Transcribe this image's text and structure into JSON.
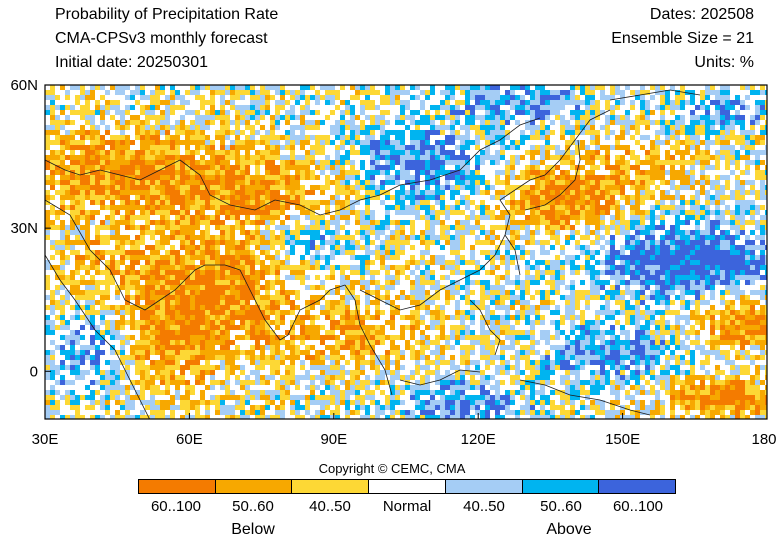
{
  "header": {
    "title": "Probability of Precipitation Rate",
    "model": "CMA-CPSv3 monthly forecast",
    "initial_date": "Initial date: 20250301",
    "dates": "Dates: 202508",
    "ensemble": "Ensemble Size = 21",
    "units": "Units: %"
  },
  "axes": {
    "lon_ticks": [
      "30E",
      "60E",
      "90E",
      "120E",
      "150E",
      "180"
    ],
    "lat_ticks": [
      "60N",
      "30N",
      "0"
    ],
    "lon_values": [
      30,
      60,
      90,
      120,
      150,
      180
    ],
    "lat_values": [
      60,
      30,
      0
    ],
    "lon_range": [
      30,
      180
    ],
    "lat_range": [
      -10,
      60
    ]
  },
  "copyright": "Copyright © CEMC, CMA",
  "legend": {
    "categories": [
      {
        "label": "60..100",
        "group": "Below",
        "color": "#f47b00"
      },
      {
        "label": "50..60",
        "group": "Below",
        "color": "#f7a800"
      },
      {
        "label": "40..50",
        "group": "Below",
        "color": "#fdd835"
      },
      {
        "label": "Normal",
        "group": "Normal",
        "color": "#ffffff"
      },
      {
        "label": "40..50",
        "group": "Above",
        "color": "#a5cdf5"
      },
      {
        "label": "50..60",
        "group": "Above",
        "color": "#00b4f0"
      },
      {
        "label": "60..100",
        "group": "Above",
        "color": "#3c64dc"
      }
    ],
    "below_label": "Below",
    "above_label": "Above"
  }
}
